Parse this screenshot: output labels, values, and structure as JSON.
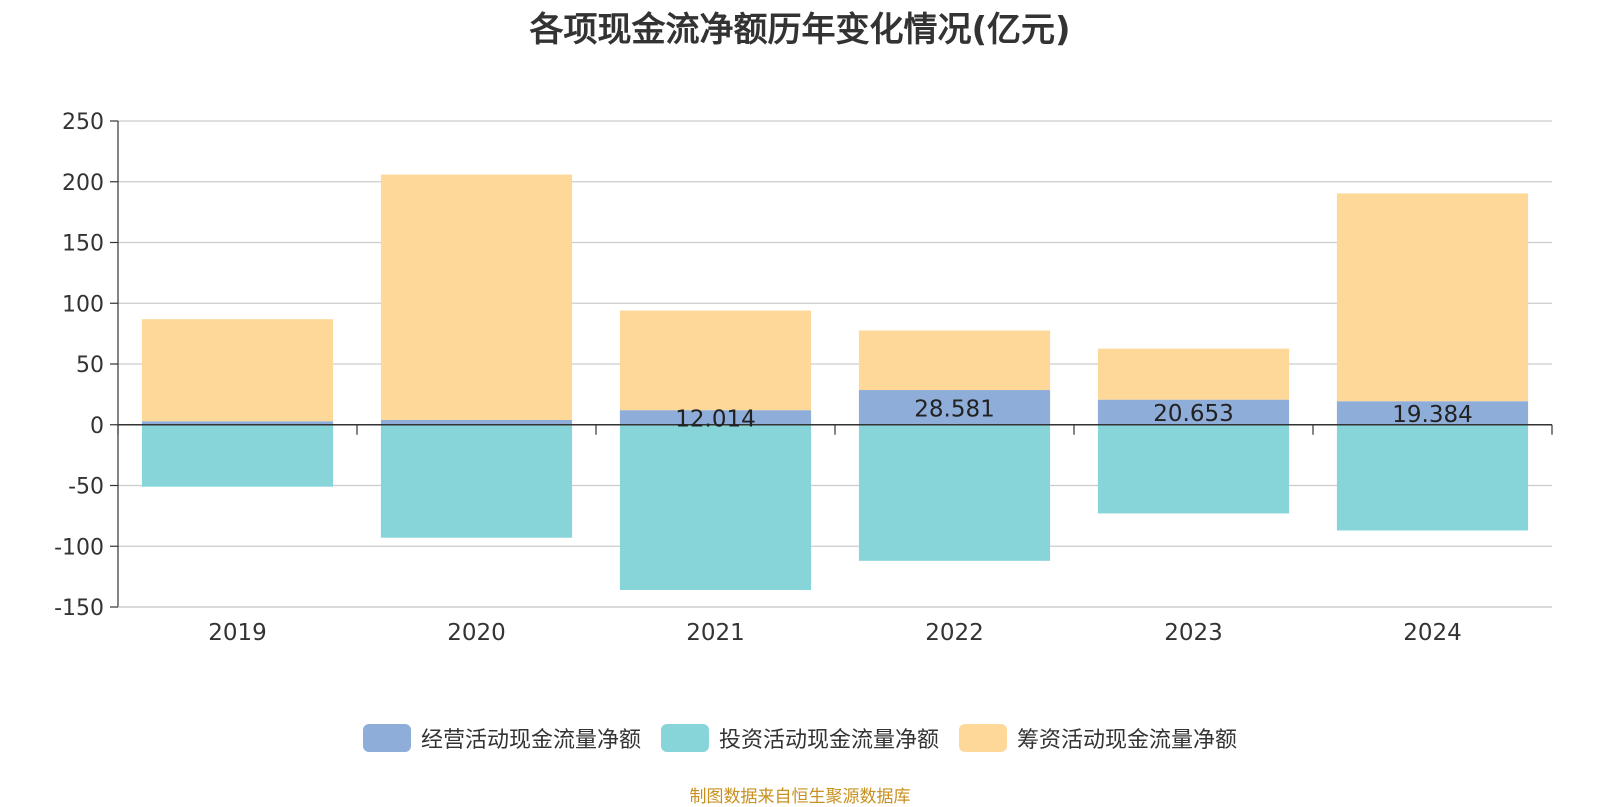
{
  "chart_data": {
    "type": "bar",
    "stacked": true,
    "title": "各项现金流净额历年变化情况(亿元)",
    "categories": [
      "2019",
      "2020",
      "2021",
      "2022",
      "2023",
      "2024"
    ],
    "ylim": [
      -150,
      250
    ],
    "yticks": [
      250,
      200,
      150,
      100,
      50,
      0,
      -50,
      -100,
      -150
    ],
    "grid": true,
    "legend_position": "bottom",
    "series": [
      {
        "name": "经营活动现金流量净额",
        "color": "#8fadd9",
        "values": [
          2.9,
          3.9,
          12.014,
          28.581,
          20.653,
          19.384
        ],
        "labels": [
          "",
          "",
          "12.014",
          "28.581",
          "20.653",
          "19.384"
        ]
      },
      {
        "name": "投资活动现金流量净额",
        "color": "#88d5d9",
        "values": [
          -51,
          -93,
          -136,
          -112,
          -73,
          -87
        ]
      },
      {
        "name": "筹资活动现金流量净额",
        "color": "#fed899",
        "values": [
          84,
          202,
          82,
          49,
          42,
          171
        ]
      }
    ]
  },
  "source": "制图数据来自恒生聚源数据库"
}
